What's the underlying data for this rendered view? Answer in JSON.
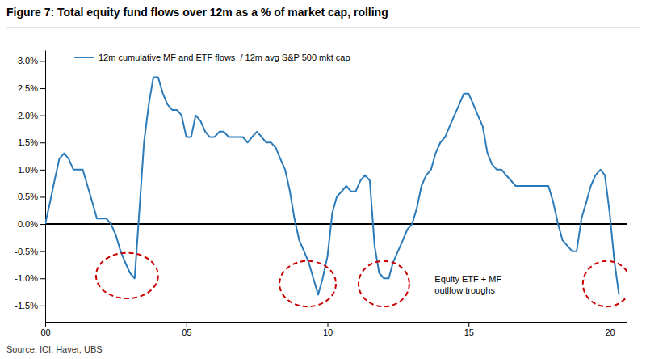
{
  "chart_data": {
    "type": "line",
    "title": "Figure 7: Total equity fund flows over 12m as a % of market cap, rolling",
    "source": "Source: ICI, Haver, UBS",
    "annotation": {
      "text": "Equity ETF + MF\noutlfow troughs",
      "x": 2013.8,
      "y": -0.009
    },
    "legend": "upper left",
    "grid": false,
    "xlim": [
      2000.0,
      2020.6
    ],
    "xticks": [
      {
        "value": 2000,
        "label": "00"
      },
      {
        "value": 2005,
        "label": "05"
      },
      {
        "value": 2010,
        "label": "10"
      },
      {
        "value": 2015,
        "label": "15"
      },
      {
        "value": 2020,
        "label": "20"
      }
    ],
    "ylim": [
      -0.018,
      0.032
    ],
    "yticks": [
      {
        "value": -0.015,
        "label": "-1.5%"
      },
      {
        "value": -0.01,
        "label": "-1.0%"
      },
      {
        "value": -0.005,
        "label": "-0.5%"
      },
      {
        "value": 0.0,
        "label": "0.0%"
      },
      {
        "value": 0.005,
        "label": "0.5%"
      },
      {
        "value": 0.01,
        "label": "1.0%"
      },
      {
        "value": 0.015,
        "label": "1.5%"
      },
      {
        "value": 0.02,
        "label": "2.0%"
      },
      {
        "value": 0.025,
        "label": "2.5%"
      },
      {
        "value": 0.03,
        "label": "3.0%"
      }
    ],
    "hlines": [
      {
        "y": 0.0,
        "color": "#000000"
      }
    ],
    "highlights": {
      "color": "#cc0000",
      "line_style": "dashed",
      "ellipses": [
        {
          "cx": 2002.9,
          "cy": -0.0095,
          "rx": 1.1,
          "ry": 0.0042
        },
        {
          "cx": 2009.3,
          "cy": -0.011,
          "rx": 1.0,
          "ry": 0.0042
        },
        {
          "cx": 2012.0,
          "cy": -0.011,
          "rx": 0.9,
          "ry": 0.0042
        },
        {
          "cx": 2019.9,
          "cy": -0.011,
          "rx": 0.85,
          "ry": 0.0042
        }
      ]
    },
    "x": [
      2000.0,
      2000.17,
      2000.33,
      2000.5,
      2000.67,
      2000.83,
      2001.0,
      2001.17,
      2001.33,
      2001.5,
      2001.67,
      2001.83,
      2002.0,
      2002.17,
      2002.33,
      2002.5,
      2002.67,
      2002.83,
      2003.0,
      2003.17,
      2003.33,
      2003.5,
      2003.67,
      2003.83,
      2004.0,
      2004.17,
      2004.33,
      2004.5,
      2004.67,
      2004.83,
      2005.0,
      2005.17,
      2005.33,
      2005.5,
      2005.67,
      2005.83,
      2006.0,
      2006.17,
      2006.33,
      2006.5,
      2006.67,
      2006.83,
      2007.0,
      2007.17,
      2007.33,
      2007.5,
      2007.67,
      2007.83,
      2008.0,
      2008.17,
      2008.33,
      2008.5,
      2008.67,
      2008.83,
      2009.0,
      2009.17,
      2009.33,
      2009.5,
      2009.67,
      2009.83,
      2010.0,
      2010.17,
      2010.33,
      2010.5,
      2010.67,
      2010.83,
      2011.0,
      2011.17,
      2011.33,
      2011.5,
      2011.67,
      2011.83,
      2012.0,
      2012.17,
      2012.33,
      2012.5,
      2012.67,
      2012.83,
      2013.0,
      2013.17,
      2013.33,
      2013.5,
      2013.67,
      2013.83,
      2014.0,
      2014.17,
      2014.33,
      2014.5,
      2014.67,
      2014.83,
      2015.0,
      2015.17,
      2015.33,
      2015.5,
      2015.67,
      2015.83,
      2016.0,
      2016.17,
      2016.33,
      2016.5,
      2016.67,
      2016.83,
      2017.0,
      2017.17,
      2017.33,
      2017.5,
      2017.67,
      2017.83,
      2018.0,
      2018.17,
      2018.33,
      2018.5,
      2018.67,
      2018.83,
      2019.0,
      2019.17,
      2019.33,
      2019.5,
      2019.67,
      2019.83,
      2020.0,
      2020.17,
      2020.33
    ],
    "series": [
      {
        "name": "12m cumulative MF and ETF flows  / 12m avg S&P 500 mkt cap",
        "color": "#2b7bba",
        "values": [
          0.0,
          0.004,
          0.008,
          0.012,
          0.013,
          0.012,
          0.01,
          0.01,
          0.01,
          0.007,
          0.004,
          0.001,
          0.001,
          0.001,
          0.0,
          -0.002,
          -0.005,
          -0.007,
          -0.009,
          -0.01,
          0.002,
          0.015,
          0.022,
          0.027,
          0.027,
          0.024,
          0.022,
          0.021,
          0.021,
          0.02,
          0.016,
          0.016,
          0.02,
          0.019,
          0.017,
          0.016,
          0.016,
          0.017,
          0.017,
          0.016,
          0.016,
          0.016,
          0.016,
          0.015,
          0.016,
          0.017,
          0.016,
          0.015,
          0.015,
          0.014,
          0.012,
          0.01,
          0.006,
          0.001,
          -0.003,
          -0.005,
          -0.007,
          -0.01,
          -0.013,
          -0.01,
          -0.006,
          0.002,
          0.005,
          0.006,
          0.007,
          0.006,
          0.006,
          0.008,
          0.009,
          0.008,
          -0.004,
          -0.009,
          -0.01,
          -0.01,
          -0.007,
          -0.005,
          -0.003,
          -0.001,
          0.0,
          0.003,
          0.007,
          0.009,
          0.01,
          0.013,
          0.015,
          0.016,
          0.018,
          0.02,
          0.022,
          0.024,
          0.024,
          0.022,
          0.02,
          0.018,
          0.013,
          0.011,
          0.01,
          0.01,
          0.009,
          0.008,
          0.007,
          0.007,
          0.007,
          0.007,
          0.007,
          0.007,
          0.007,
          0.007,
          0.004,
          0.0,
          -0.003,
          -0.004,
          -0.005,
          -0.005,
          0.001,
          0.004,
          0.007,
          0.009,
          0.01,
          0.009,
          0.002,
          -0.007,
          -0.013
        ]
      }
    ]
  }
}
